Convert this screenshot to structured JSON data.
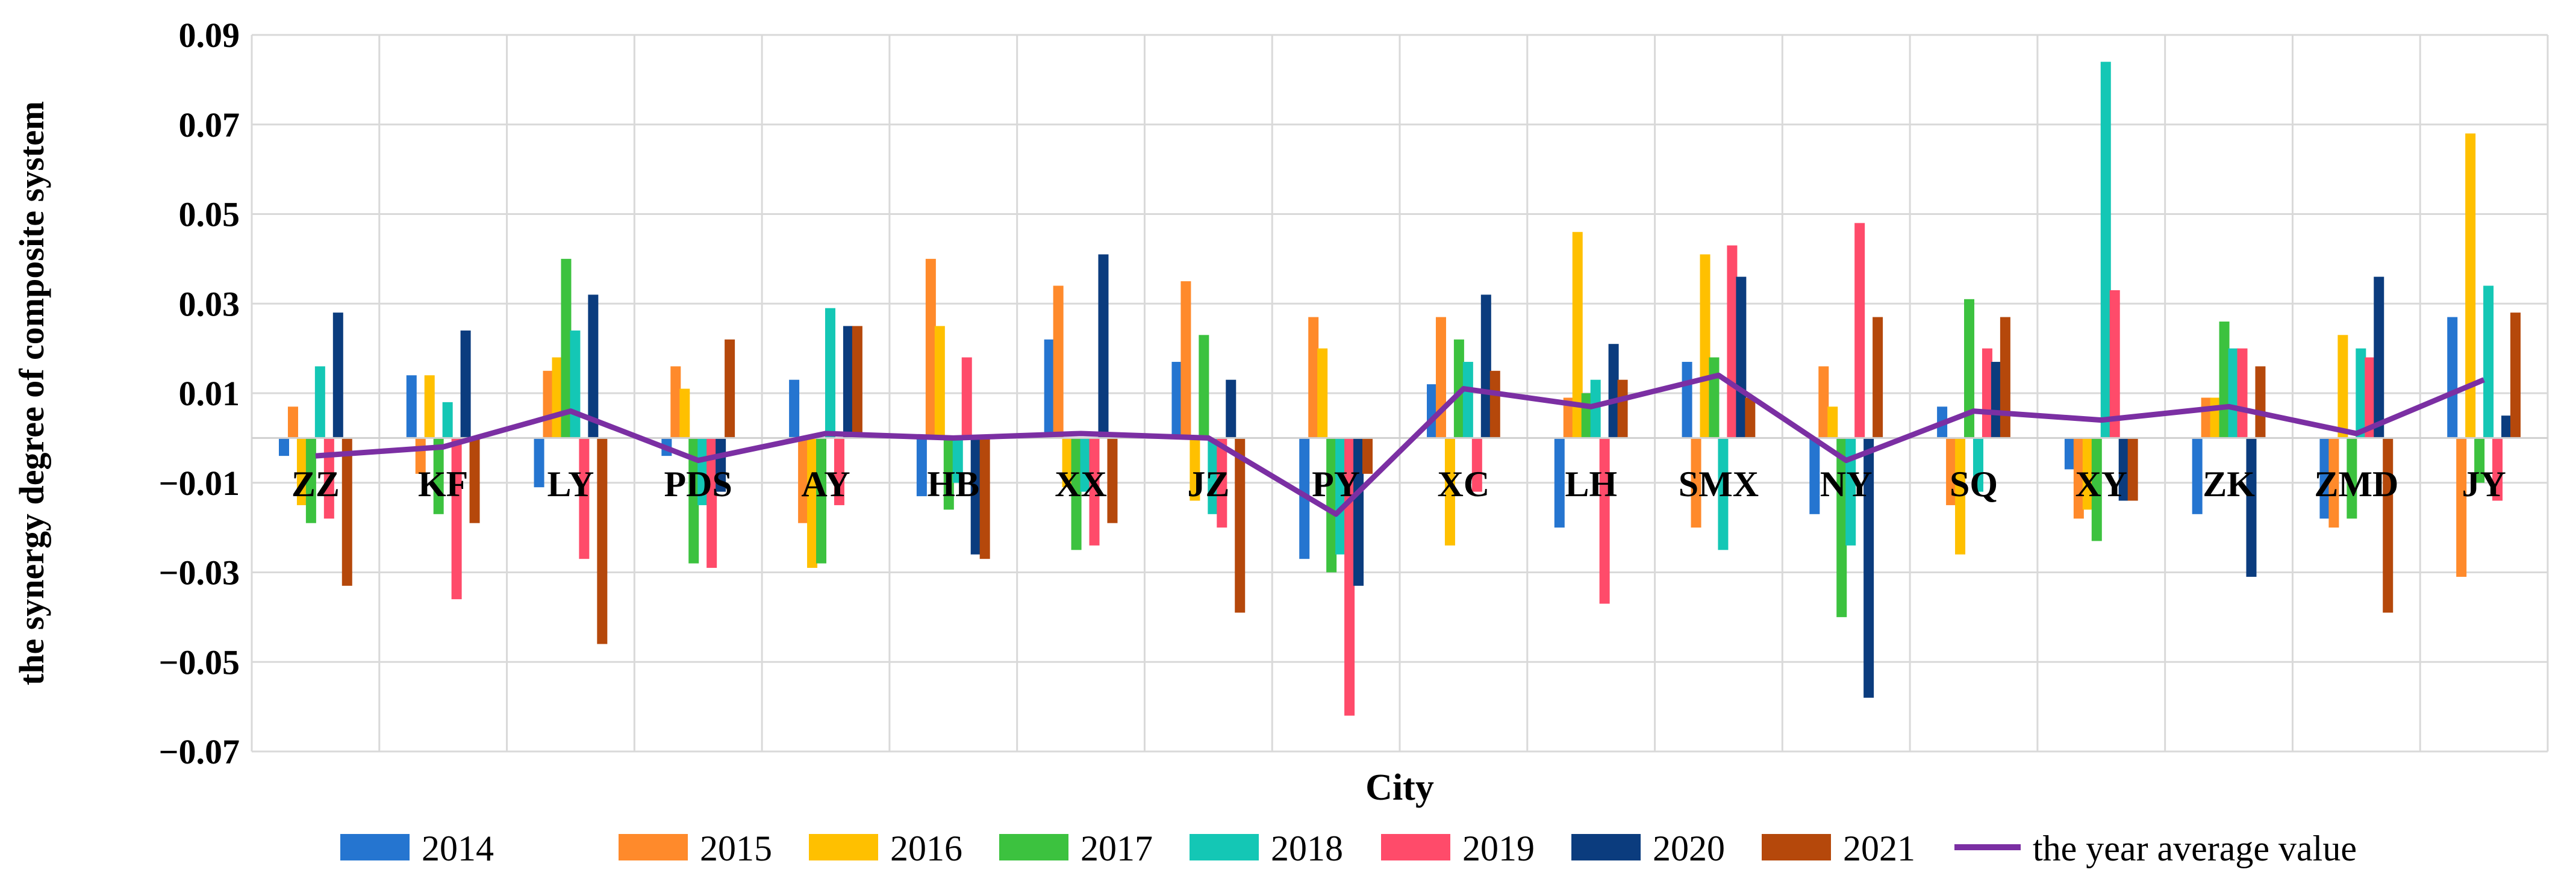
{
  "chart_data": {
    "type": "bar",
    "xlabel": "City",
    "ylabel": "the synergy degree of composite system",
    "ylim": [
      -0.07,
      0.09
    ],
    "yticks": [
      -0.07,
      -0.05,
      -0.03,
      -0.01,
      0.01,
      0.03,
      0.05,
      0.07,
      0.09
    ],
    "ytick_labels": [
      "−0.07",
      "−0.05",
      "−0.03",
      "−0.01",
      "0.01",
      "0.03",
      "0.05",
      "0.07",
      "0.09"
    ],
    "grid": true,
    "legend_position": "bottom",
    "categories": [
      "ZZ",
      "KF",
      "LY",
      "PDS",
      "AY",
      "HB",
      "XX",
      "JZ",
      "PY",
      "XC",
      "LH",
      "SMX",
      "NY",
      "SQ",
      "XY",
      "ZK",
      "ZMD",
      "JY"
    ],
    "series": [
      {
        "name": "2014",
        "color": "#2575D0",
        "values": [
          -0.004,
          0.014,
          -0.011,
          -0.004,
          0.013,
          -0.013,
          0.022,
          0.017,
          -0.027,
          0.012,
          -0.02,
          0.017,
          -0.017,
          0.007,
          -0.007,
          -0.017,
          -0.018,
          0.027
        ]
      },
      {
        "name": "2015",
        "color": "#FF8A2B",
        "values": [
          0.007,
          -0.008,
          0.015,
          0.016,
          -0.019,
          0.04,
          0.034,
          0.035,
          0.027,
          0.027,
          0.009,
          -0.02,
          0.016,
          -0.015,
          -0.018,
          0.009,
          -0.02,
          -0.031
        ]
      },
      {
        "name": "2016",
        "color": "#FFC000",
        "values": [
          -0.015,
          0.014,
          0.018,
          0.011,
          -0.029,
          0.025,
          -0.011,
          -0.014,
          0.02,
          -0.024,
          0.046,
          0.041,
          0.007,
          -0.026,
          -0.016,
          0.009,
          0.023,
          0.068
        ]
      },
      {
        "name": "2017",
        "color": "#3CC23F",
        "values": [
          -0.019,
          -0.017,
          0.04,
          -0.028,
          -0.028,
          -0.016,
          -0.025,
          0.023,
          -0.03,
          0.022,
          0.01,
          0.018,
          -0.04,
          0.031,
          -0.023,
          0.026,
          -0.018,
          -0.01
        ]
      },
      {
        "name": "2018",
        "color": "#14C7B5",
        "values": [
          0.016,
          0.008,
          0.024,
          -0.015,
          0.029,
          -0.01,
          -0.012,
          -0.017,
          -0.026,
          0.017,
          0.013,
          -0.025,
          -0.024,
          -0.012,
          0.084,
          0.02,
          0.02,
          0.034
        ]
      },
      {
        "name": "2019",
        "color": "#FF4B6A",
        "values": [
          -0.018,
          -0.036,
          -0.027,
          -0.029,
          -0.015,
          0.018,
          -0.024,
          -0.02,
          -0.062,
          -0.012,
          -0.037,
          0.043,
          0.048,
          0.02,
          0.033,
          0.02,
          0.018,
          -0.014
        ]
      },
      {
        "name": "2020",
        "color": "#0B3C7E",
        "values": [
          0.028,
          0.024,
          0.032,
          -0.012,
          0.025,
          -0.026,
          0.041,
          0.013,
          -0.033,
          0.032,
          0.021,
          0.036,
          -0.058,
          0.017,
          -0.014,
          -0.031,
          0.036,
          0.005
        ]
      },
      {
        "name": "2021",
        "color": "#B5480B",
        "values": [
          -0.033,
          -0.019,
          -0.046,
          0.022,
          0.025,
          -0.027,
          -0.019,
          -0.039,
          -0.008,
          0.015,
          0.013,
          0.009,
          0.027,
          0.027,
          -0.014,
          0.016,
          -0.039,
          0.028
        ]
      }
    ],
    "line_series": {
      "name": "the year average value",
      "color": "#7B2FA3",
      "values": [
        -0.004,
        -0.002,
        0.006,
        -0.005,
        0.001,
        0.0,
        0.001,
        0.0,
        -0.017,
        0.011,
        0.007,
        0.014,
        -0.005,
        0.006,
        0.004,
        0.007,
        0.001,
        0.013
      ]
    }
  }
}
